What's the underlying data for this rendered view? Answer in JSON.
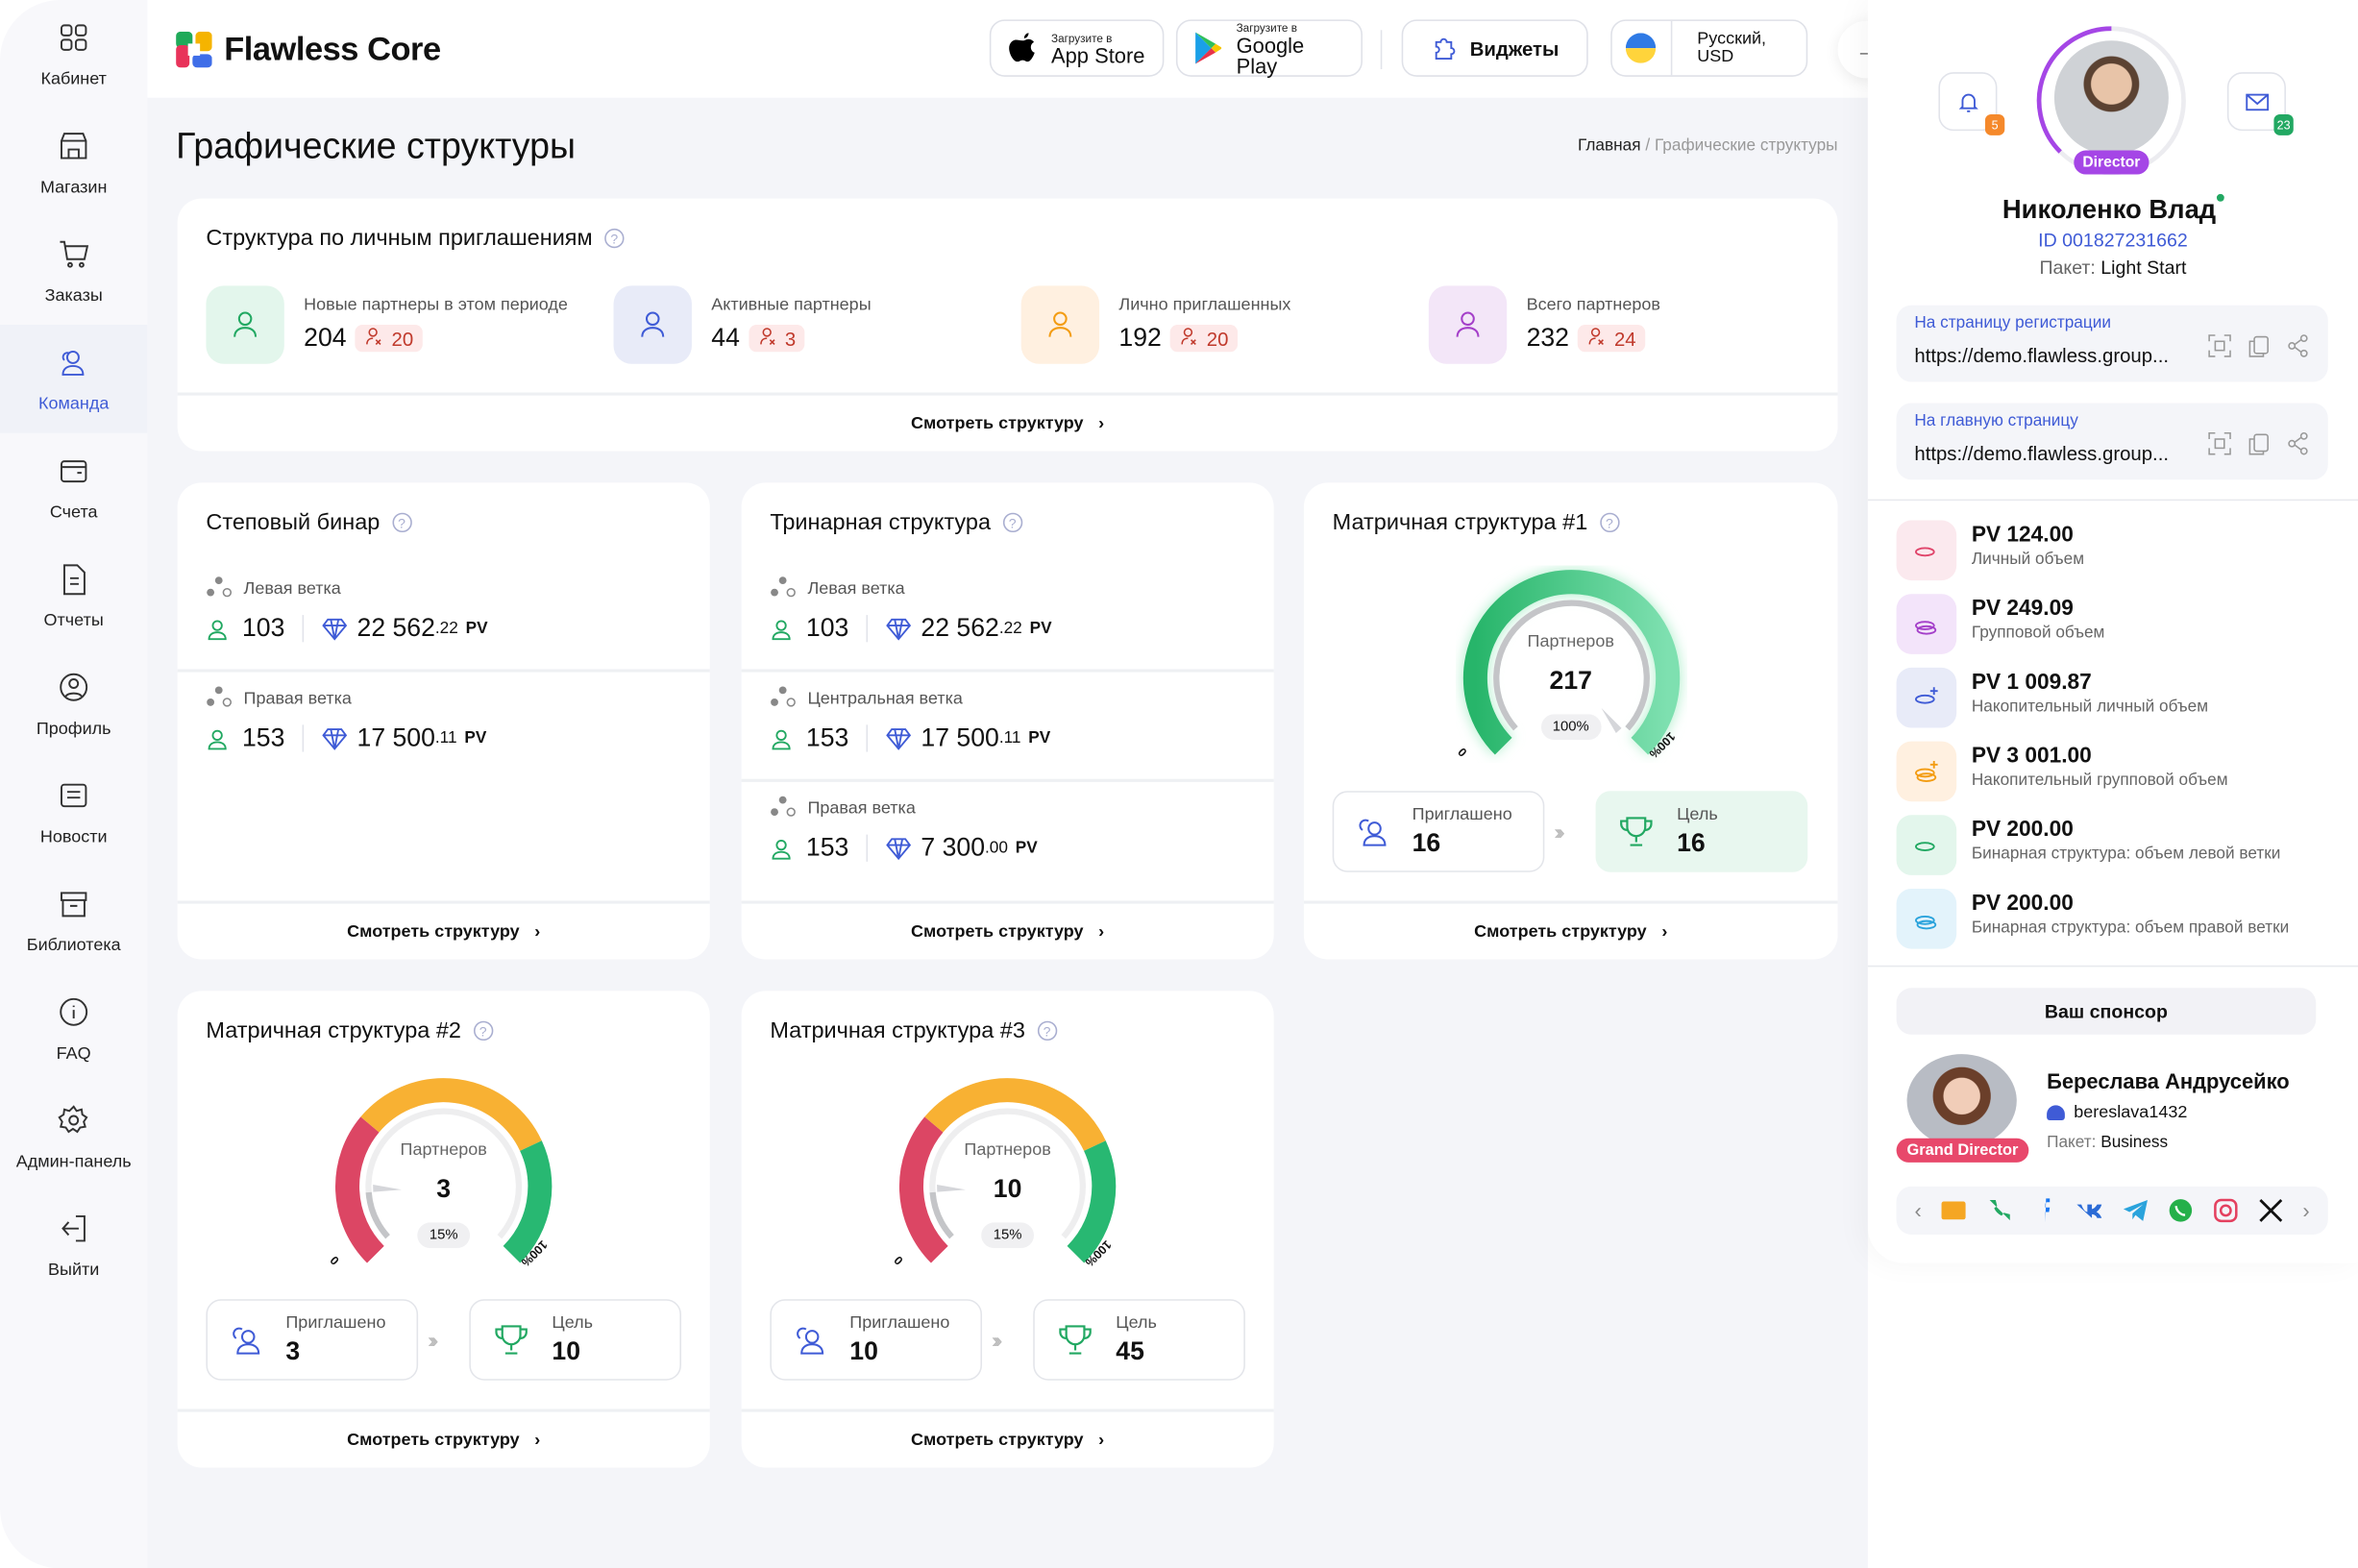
{
  "sidebar": {
    "items": [
      {
        "label": "Кабинет",
        "icon": "grid-icon"
      },
      {
        "label": "Магазин",
        "icon": "store-icon"
      },
      {
        "label": "Заказы",
        "icon": "cart-icon"
      },
      {
        "label": "Команда",
        "icon": "team-icon",
        "active": true
      },
      {
        "label": "Счета",
        "icon": "wallet-icon"
      },
      {
        "label": "Отчеты",
        "icon": "report-icon"
      },
      {
        "label": "Профиль",
        "icon": "profile-icon"
      },
      {
        "label": "Новости",
        "icon": "news-icon"
      },
      {
        "label": "Библиотека",
        "icon": "library-icon"
      },
      {
        "label": "FAQ",
        "icon": "info-icon"
      },
      {
        "label": "Админ-панель",
        "icon": "gear-icon"
      },
      {
        "label": "Выйти",
        "icon": "logout-icon"
      }
    ]
  },
  "header": {
    "brand": "Flawless Core",
    "appstore_small": "Загрузите в",
    "appstore": "App Store",
    "gplay_small": "Загрузите в",
    "gplay": "Google Play",
    "widgets": "Виджеты",
    "lang": "Русский, USD"
  },
  "page": {
    "title": "Графические структуры",
    "crumb_home": "Главная",
    "crumb_sep": "/",
    "crumb_current": "Графические структуры"
  },
  "personal": {
    "title": "Структура по личным приглашениям",
    "help": "?",
    "link": "Смотреть структуру",
    "stats": [
      {
        "label": "Новые партнеры в этом периоде",
        "value": "204",
        "inactive": "20",
        "color": "#e3f6ec",
        "stroke": "#22a862"
      },
      {
        "label": "Активные партнеры",
        "value": "44",
        "inactive": "3",
        "color": "#e8ebf8",
        "stroke": "#3f5bd6"
      },
      {
        "label": "Лично приглашенных",
        "value": "192",
        "inactive": "20",
        "color": "#fff0e0",
        "stroke": "#f39c12"
      },
      {
        "label": "Всего партнеров",
        "value": "232",
        "inactive": "24",
        "color": "#f3e6f8",
        "stroke": "#a43fc9"
      }
    ]
  },
  "binary": {
    "title": "Степовый бинар",
    "link": "Смотреть структуру",
    "branches": [
      {
        "label": "Левая ветка",
        "count": "103",
        "pv_int": "22 562",
        "pv_dec": ".22",
        "unit": "PV"
      },
      {
        "label": "Правая ветка",
        "count": "153",
        "pv_int": "17 500",
        "pv_dec": ".11",
        "unit": "PV"
      }
    ]
  },
  "trinary": {
    "title": "Тринарная структура",
    "link": "Смотреть структуру",
    "branches": [
      {
        "label": "Левая ветка",
        "count": "103",
        "pv_int": "22 562",
        "pv_dec": ".22",
        "unit": "PV"
      },
      {
        "label": "Центральная ветка",
        "count": "153",
        "pv_int": "17 500",
        "pv_dec": ".11",
        "unit": "PV"
      },
      {
        "label": "Правая ветка",
        "count": "153",
        "pv_int": "7 300",
        "pv_dec": ".00",
        "unit": "PV"
      }
    ]
  },
  "matrices": [
    {
      "title": "Матричная структура #1",
      "center_label": "Партнеров",
      "value": "217",
      "percent_label": "100%",
      "percent": 100,
      "min": "0",
      "max": "100%",
      "invited_label": "Приглашено",
      "invited": "16",
      "goal_label": "Цель",
      "goal": "16",
      "link": "Смотреть структуру",
      "style": "green"
    },
    {
      "title": "Матричная структура #2",
      "center_label": "Партнеров",
      "value": "3",
      "percent_label": "15%",
      "percent": 15,
      "min": "0",
      "max": "100%",
      "invited_label": "Приглашено",
      "invited": "3",
      "goal_label": "Цель",
      "goal": "10",
      "link": "Смотреть структуру",
      "style": "tri"
    },
    {
      "title": "Матричная структура #3",
      "center_label": "Партнеров",
      "value": "10",
      "percent_label": "15%",
      "percent": 15,
      "min": "0",
      "max": "100%",
      "invited_label": "Приглашено",
      "invited": "10",
      "goal_label": "Цель",
      "goal": "45",
      "link": "Смотреть структуру",
      "style": "tri"
    }
  ],
  "profile": {
    "name": "Николенко Влад",
    "id": "ID 001827231662",
    "package_label": "Пакет:",
    "package": "Light Start",
    "rank": "Director",
    "notifications": "5",
    "messages": "23",
    "links": [
      {
        "title": "На страницу регистрации",
        "url": "https://demo.flawless.group..."
      },
      {
        "title": "На главную страницу",
        "url": "https://demo.flawless.group..."
      }
    ]
  },
  "volumes": [
    {
      "amount": "PV 124.00",
      "label": "Личный объем",
      "bg": "#fbe9ee",
      "fg": "#e0446a",
      "icon": "coin-icon"
    },
    {
      "amount": "PV 249.09",
      "label": "Групповой объем",
      "bg": "#f3e4fa",
      "fg": "#a43fc9",
      "icon": "coins-icon"
    },
    {
      "amount": "PV 1 009.87",
      "label": "Накопительный личный объем",
      "bg": "#e8ebf8",
      "fg": "#3f5bd6",
      "icon": "coin-plus-icon"
    },
    {
      "amount": "PV 3 001.00",
      "label": "Накопительный групповой объем",
      "bg": "#fff0e0",
      "fg": "#f39c12",
      "icon": "coins-plus-icon"
    },
    {
      "amount": "PV 200.00",
      "label": "Бинарная структура: объем левой ветки",
      "bg": "#e3f6ec",
      "fg": "#22a862",
      "icon": "tree-left-icon"
    },
    {
      "amount": "PV 200.00",
      "label": "Бинарная структура: объем правой ветки",
      "bg": "#e3f3fb",
      "fg": "#2aa3dc",
      "icon": "tree-right-icon"
    }
  ],
  "sponsor": {
    "button": "Ваш спонсор",
    "name": "Береслава Андрусейко",
    "username": "bereslava1432",
    "package_label": "Пакет:",
    "package": "Business",
    "rank": "Grand Director"
  },
  "socials": [
    {
      "icon": "email-icon",
      "color": "#f5a623"
    },
    {
      "icon": "phone-icon",
      "color": "#22a862"
    },
    {
      "icon": "facebook-icon",
      "color": "#1877f2"
    },
    {
      "icon": "vk-icon",
      "color": "#2b6bd6"
    },
    {
      "icon": "telegram-icon",
      "color": "#2aa3dc"
    },
    {
      "icon": "whatsapp-icon",
      "color": "#25b04a"
    },
    {
      "icon": "instagram-icon",
      "color": "#e4405f"
    },
    {
      "icon": "x-icon",
      "color": "#111"
    }
  ]
}
